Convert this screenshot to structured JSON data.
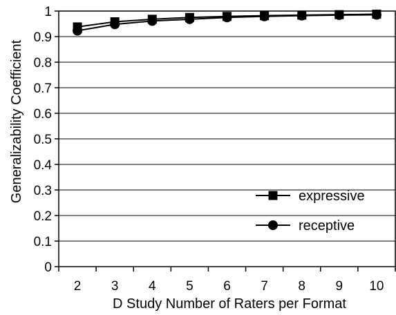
{
  "chart_data": {
    "type": "line",
    "title": "",
    "xlabel": "D Study Number of Raters per Format",
    "ylabel": "Generalizability Coefficient",
    "x": [
      2,
      3,
      4,
      5,
      6,
      7,
      8,
      9,
      10
    ],
    "x_tick_labels": [
      "2",
      "3",
      "4",
      "5",
      "6",
      "7",
      "8",
      "9",
      "10"
    ],
    "y_tick_labels": [
      "0",
      "0.1",
      "0.2",
      "0.3",
      "0.4",
      "0.5",
      "0.6",
      "0.7",
      "0.8",
      "0.9",
      "1"
    ],
    "ylim": [
      0,
      1
    ],
    "grid": "horizontal",
    "legend_position": "bottom-right",
    "series": [
      {
        "name": "expressive",
        "marker": "square",
        "values": [
          0.938,
          0.958,
          0.968,
          0.975,
          0.979,
          0.982,
          0.984,
          0.986,
          0.988
        ]
      },
      {
        "name": "receptive",
        "marker": "circle",
        "values": [
          0.923,
          0.948,
          0.961,
          0.968,
          0.975,
          0.979,
          0.982,
          0.984,
          0.985
        ]
      }
    ],
    "line_color": "#000000"
  }
}
